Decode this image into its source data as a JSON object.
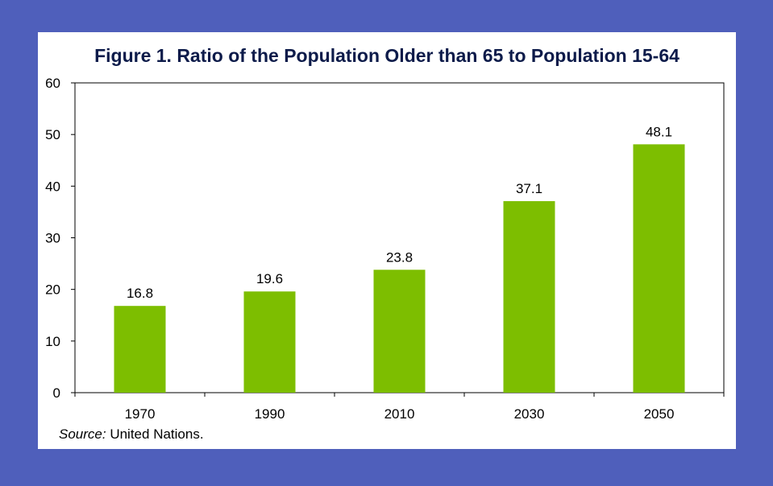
{
  "chart_data": {
    "type": "bar",
    "title": "Figure 1. Ratio of the Population Older than 65 to Population 15-64",
    "categories": [
      "1970",
      "1990",
      "2010",
      "2030",
      "2050"
    ],
    "values": [
      16.8,
      19.6,
      23.8,
      37.1,
      48.1
    ],
    "data_labels": [
      "16.8",
      "19.6",
      "23.8",
      "37.1",
      "48.1"
    ],
    "ylim": [
      0,
      60
    ],
    "yticks": [
      0,
      10,
      20,
      30,
      40,
      50,
      60
    ],
    "xlabel": "",
    "ylabel": "",
    "grid": false,
    "legend": "none",
    "bar_color": "#7dbe00"
  },
  "source": {
    "label": "Source:",
    "text": "United Nations."
  },
  "colors": {
    "background": "#4f5fbb",
    "panel": "#ffffff",
    "title": "#0d1b4a"
  }
}
